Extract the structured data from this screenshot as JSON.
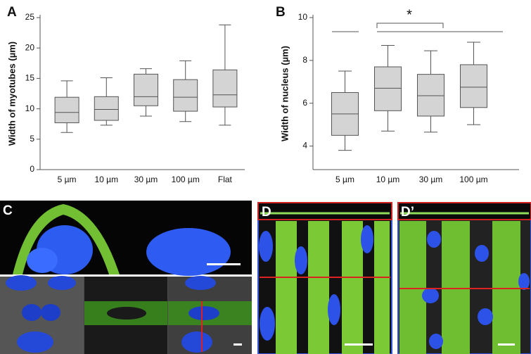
{
  "chart_data": [
    {
      "type": "box",
      "label": "A",
      "ylabel": "Width of myotubes (µm)",
      "categories": [
        "5 µm",
        "10 µm",
        "30 µm",
        "100 µm",
        "Flat"
      ],
      "whisker_low": [
        6.1,
        7.3,
        8.8,
        7.9,
        7.3
      ],
      "q1": [
        7.7,
        8.1,
        10.5,
        9.6,
        10.3
      ],
      "median": [
        9.4,
        9.9,
        12.0,
        11.9,
        12.3
      ],
      "q3": [
        11.9,
        12.0,
        15.7,
        14.8,
        16.4
      ],
      "whisker_high": [
        14.6,
        15.1,
        16.6,
        17.9,
        23.8
      ],
      "color": "#d4d4d4",
      "ylim": [
        0,
        25
      ],
      "yticks": [
        0,
        5,
        10,
        15,
        20,
        25
      ]
    },
    {
      "type": "box",
      "label": "B",
      "ylabel": "Width of nucleus (µm)",
      "categories": [
        "5 µm",
        "10 µm",
        "30 µm",
        "100 µm"
      ],
      "whisker_low": [
        3.8,
        4.7,
        4.65,
        5.0
      ],
      "q1": [
        4.5,
        5.65,
        5.4,
        5.8
      ],
      "median": [
        5.5,
        6.7,
        6.35,
        6.75
      ],
      "q3": [
        6.5,
        7.7,
        7.35,
        7.8
      ],
      "whisker_high": [
        7.5,
        8.7,
        8.45,
        8.85
      ],
      "color": "#d4d4d4",
      "ylim": [
        2.9,
        10
      ],
      "yticks": [
        4,
        6,
        8,
        10
      ],
      "annotation": "*"
    }
  ],
  "image_panels": [
    "C",
    "D",
    "D’"
  ]
}
